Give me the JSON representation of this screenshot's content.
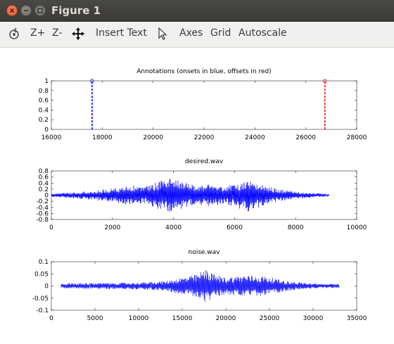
{
  "window": {
    "title": "Figure 1"
  },
  "toolbar": {
    "zoom_in": "Z+",
    "zoom_out": "Z-",
    "insert_text": "Insert Text",
    "axes": "Axes",
    "grid": "Grid",
    "autoscale": "Autoscale"
  },
  "chart_data": [
    {
      "type": "line",
      "title": "Annotations (onsets in blue, offsets in red)",
      "xlim": [
        16000,
        28000
      ],
      "ylim": [
        0,
        1
      ],
      "xticks": [
        "16000",
        "18000",
        "20000",
        "22000",
        "24000",
        "26000",
        "28000"
      ],
      "yticks": [
        "0",
        "0.2",
        "0.4",
        "0.6",
        "0.8",
        "1"
      ],
      "series": [
        {
          "x": [
            17600,
            17600
          ],
          "y": [
            0,
            1
          ],
          "color": "#0000ff",
          "style": "dashed",
          "marker": "circle"
        },
        {
          "x": [
            26750,
            26750
          ],
          "y": [
            0,
            1
          ],
          "color": "#ff0000",
          "style": "dashed",
          "marker": "circle"
        }
      ]
    },
    {
      "type": "line",
      "title": "desired.wav",
      "xlim": [
        0,
        10000
      ],
      "ylim": [
        -0.8,
        0.8
      ],
      "xticks": [
        "0",
        "2000",
        "4000",
        "6000",
        "8000",
        "10000"
      ],
      "yticks": [
        "-0.8",
        "-0.6",
        "-0.4",
        "-0.2",
        "0",
        "0.2",
        "0.4",
        "0.6",
        "0.8"
      ],
      "color": "#0000ff",
      "signal_extent": [
        0,
        9100
      ],
      "envelope": [
        {
          "x": 0,
          "amp": 0.05
        },
        {
          "x": 1000,
          "amp": 0.12
        },
        {
          "x": 2000,
          "amp": 0.22
        },
        {
          "x": 2600,
          "amp": 0.35
        },
        {
          "x": 3000,
          "amp": 0.25
        },
        {
          "x": 3500,
          "amp": 0.45
        },
        {
          "x": 3900,
          "amp": 0.55
        },
        {
          "x": 4300,
          "amp": 0.45
        },
        {
          "x": 4800,
          "amp": 0.3
        },
        {
          "x": 5200,
          "amp": 0.38
        },
        {
          "x": 5700,
          "amp": 0.28
        },
        {
          "x": 6200,
          "amp": 0.45
        },
        {
          "x": 6500,
          "amp": 0.58
        },
        {
          "x": 6900,
          "amp": 0.35
        },
        {
          "x": 7500,
          "amp": 0.2
        },
        {
          "x": 8200,
          "amp": 0.1
        },
        {
          "x": 9100,
          "amp": 0.04
        }
      ]
    },
    {
      "type": "line",
      "title": "noise.wav",
      "xlim": [
        0,
        35000
      ],
      "ylim": [
        -0.1,
        0.1
      ],
      "xticks": [
        "0",
        "5000",
        "10000",
        "15000",
        "20000",
        "25000",
        "30000",
        "35000"
      ],
      "yticks": [
        "-0.1",
        "-0.05",
        "0",
        "0.05",
        "0.1"
      ],
      "color": "#0000ff",
      "signal_extent": [
        1100,
        33000
      ],
      "envelope": [
        {
          "x": 1100,
          "amp": 0.01
        },
        {
          "x": 5000,
          "amp": 0.012
        },
        {
          "x": 10000,
          "amp": 0.014
        },
        {
          "x": 13000,
          "amp": 0.02
        },
        {
          "x": 15000,
          "amp": 0.035
        },
        {
          "x": 16500,
          "amp": 0.045
        },
        {
          "x": 17800,
          "amp": 0.07
        },
        {
          "x": 18500,
          "amp": 0.05
        },
        {
          "x": 20000,
          "amp": 0.035
        },
        {
          "x": 22000,
          "amp": 0.045
        },
        {
          "x": 24500,
          "amp": 0.04
        },
        {
          "x": 27000,
          "amp": 0.02
        },
        {
          "x": 30000,
          "amp": 0.01
        },
        {
          "x": 33000,
          "amp": 0.008
        }
      ]
    }
  ]
}
